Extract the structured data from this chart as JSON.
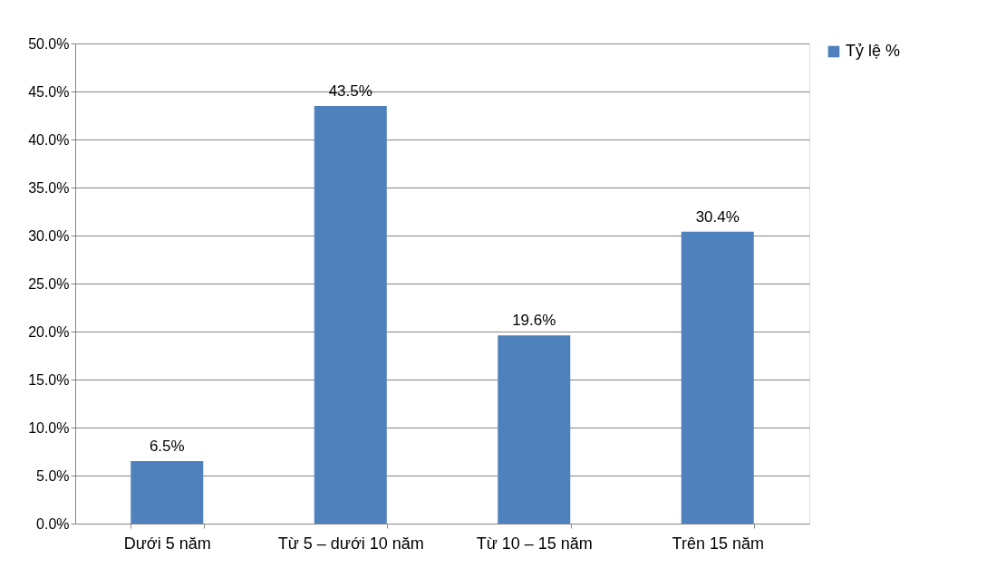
{
  "chart_data": {
    "type": "bar",
    "categories": [
      "Dưới 5 năm",
      "Từ 5 – dưới 10 năm",
      "Từ 10 – 15 năm",
      "Trên 15 năm"
    ],
    "series": [
      {
        "name": "Tỷ lệ %",
        "color": "#4f81bd",
        "values": [
          6.5,
          43.5,
          19.6,
          30.4
        ],
        "value_labels": [
          "6.5%",
          "43.5%",
          "19.6%",
          "30.4%"
        ]
      }
    ],
    "ylim": [
      0,
      50
    ],
    "yticks": [
      {
        "value": 0,
        "label": "0.0%"
      },
      {
        "value": 5,
        "label": "5.0%"
      },
      {
        "value": 10,
        "label": "10.0%"
      },
      {
        "value": 15,
        "label": "15.0%"
      },
      {
        "value": 20,
        "label": "20.0%"
      },
      {
        "value": 25,
        "label": "25.0%"
      },
      {
        "value": 30,
        "label": "30.0%"
      },
      {
        "value": 35,
        "label": "35.0%"
      },
      {
        "value": 40,
        "label": "40.0%"
      },
      {
        "value": 45,
        "label": "45.0%"
      },
      {
        "value": 50,
        "label": "50.0%"
      }
    ],
    "grid": "y",
    "legend": "right"
  }
}
